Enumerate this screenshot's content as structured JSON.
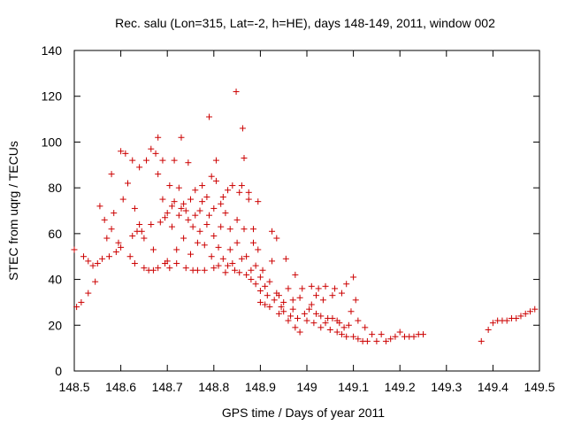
{
  "chart_data": {
    "type": "scatter",
    "title": "Rec. salu (Lon=315, Lat=-2, h=HE), days 148-149, 2011, window 002",
    "xlabel": "GPS time / Days of year 2011",
    "ylabel": "STEC from uqrg / TECUs",
    "xlim": [
      148.5,
      149.5
    ],
    "ylim": [
      0,
      140
    ],
    "xticks": [
      "148.5",
      "148.6",
      "148.7",
      "148.8",
      "148.9",
      "149",
      "149.1",
      "149.2",
      "149.3",
      "149.4",
      "149.5"
    ],
    "yticks": [
      "0",
      "20",
      "40",
      "60",
      "80",
      "100",
      "120",
      "140"
    ],
    "grid": false,
    "marker": "plus",
    "color": "#cc0000",
    "points": [
      [
        148.5,
        53
      ],
      [
        148.505,
        28
      ],
      [
        148.515,
        30
      ],
      [
        148.52,
        50
      ],
      [
        148.53,
        48
      ],
      [
        148.53,
        34
      ],
      [
        148.54,
        46
      ],
      [
        148.545,
        39
      ],
      [
        148.55,
        47
      ],
      [
        148.555,
        72
      ],
      [
        148.56,
        49
      ],
      [
        148.565,
        66
      ],
      [
        148.57,
        58
      ],
      [
        148.575,
        50
      ],
      [
        148.58,
        62
      ],
      [
        148.58,
        86
      ],
      [
        148.585,
        69
      ],
      [
        148.59,
        52
      ],
      [
        148.595,
        56
      ],
      [
        148.6,
        54
      ],
      [
        148.6,
        96
      ],
      [
        148.605,
        75
      ],
      [
        148.61,
        95
      ],
      [
        148.615,
        82
      ],
      [
        148.62,
        50
      ],
      [
        148.625,
        59
      ],
      [
        148.625,
        92
      ],
      [
        148.63,
        47
      ],
      [
        148.63,
        71
      ],
      [
        148.635,
        61
      ],
      [
        148.64,
        89
      ],
      [
        148.64,
        64
      ],
      [
        148.645,
        61
      ],
      [
        148.65,
        45
      ],
      [
        148.65,
        58
      ],
      [
        148.655,
        92
      ],
      [
        148.66,
        44
      ],
      [
        148.665,
        64
      ],
      [
        148.665,
        97
      ],
      [
        148.67,
        53
      ],
      [
        148.67,
        44
      ],
      [
        148.675,
        95
      ],
      [
        148.68,
        45
      ],
      [
        148.68,
        102
      ],
      [
        148.68,
        86
      ],
      [
        148.685,
        65
      ],
      [
        148.69,
        92
      ],
      [
        148.69,
        75
      ],
      [
        148.695,
        47
      ],
      [
        148.695,
        67
      ],
      [
        148.7,
        48
      ],
      [
        148.7,
        69
      ],
      [
        148.705,
        81
      ],
      [
        148.705,
        45
      ],
      [
        148.71,
        63
      ],
      [
        148.71,
        72
      ],
      [
        148.715,
        92
      ],
      [
        148.715,
        74
      ],
      [
        148.72,
        47
      ],
      [
        148.72,
        53
      ],
      [
        148.725,
        68
      ],
      [
        148.725,
        80
      ],
      [
        148.73,
        71
      ],
      [
        148.73,
        102
      ],
      [
        148.735,
        58
      ],
      [
        148.735,
        73
      ],
      [
        148.74,
        70
      ],
      [
        148.74,
        45
      ],
      [
        148.745,
        66
      ],
      [
        148.745,
        91
      ],
      [
        148.75,
        51
      ],
      [
        148.75,
        75
      ],
      [
        148.755,
        44
      ],
      [
        148.755,
        63
      ],
      [
        148.76,
        68
      ],
      [
        148.76,
        79
      ],
      [
        148.765,
        44
      ],
      [
        148.765,
        56
      ],
      [
        148.77,
        61
      ],
      [
        148.77,
        70
      ],
      [
        148.775,
        81
      ],
      [
        148.775,
        74
      ],
      [
        148.78,
        44
      ],
      [
        148.78,
        55
      ],
      [
        148.785,
        64
      ],
      [
        148.785,
        76
      ],
      [
        148.79,
        111
      ],
      [
        148.79,
        68
      ],
      [
        148.795,
        85
      ],
      [
        148.795,
        50
      ],
      [
        148.8,
        45
      ],
      [
        148.8,
        59
      ],
      [
        148.8,
        71
      ],
      [
        148.805,
        83
      ],
      [
        148.805,
        92
      ],
      [
        148.81,
        46
      ],
      [
        148.81,
        54
      ],
      [
        148.815,
        73
      ],
      [
        148.815,
        63
      ],
      [
        148.82,
        49
      ],
      [
        148.82,
        76
      ],
      [
        148.825,
        43
      ],
      [
        148.825,
        69
      ],
      [
        148.83,
        79
      ],
      [
        148.83,
        46
      ],
      [
        148.835,
        53
      ],
      [
        148.835,
        62
      ],
      [
        148.84,
        47
      ],
      [
        148.84,
        81
      ],
      [
        148.845,
        44
      ],
      [
        148.848,
        122
      ],
      [
        148.85,
        56
      ],
      [
        148.85,
        66
      ],
      [
        148.855,
        78
      ],
      [
        148.855,
        43
      ],
      [
        148.86,
        49
      ],
      [
        148.86,
        81
      ],
      [
        148.862,
        106
      ],
      [
        148.865,
        93
      ],
      [
        148.865,
        62
      ],
      [
        148.87,
        42
      ],
      [
        148.87,
        50
      ],
      [
        148.875,
        78
      ],
      [
        148.875,
        75
      ],
      [
        148.88,
        40
      ],
      [
        148.88,
        44
      ],
      [
        148.885,
        56
      ],
      [
        148.885,
        62
      ],
      [
        148.89,
        38
      ],
      [
        148.89,
        46
      ],
      [
        148.895,
        53
      ],
      [
        148.895,
        74
      ],
      [
        148.9,
        30
      ],
      [
        148.9,
        35
      ],
      [
        148.9,
        41
      ],
      [
        148.905,
        44
      ],
      [
        148.91,
        29
      ],
      [
        148.91,
        37
      ],
      [
        148.915,
        33
      ],
      [
        148.92,
        28
      ],
      [
        148.92,
        39
      ],
      [
        148.925,
        48
      ],
      [
        148.925,
        61
      ],
      [
        148.93,
        31
      ],
      [
        148.935,
        34
      ],
      [
        148.935,
        58
      ],
      [
        148.94,
        25
      ],
      [
        148.94,
        33
      ],
      [
        148.945,
        28
      ],
      [
        148.95,
        30
      ],
      [
        148.95,
        26
      ],
      [
        148.955,
        49
      ],
      [
        148.96,
        22
      ],
      [
        148.96,
        36
      ],
      [
        148.965,
        24
      ],
      [
        148.97,
        31
      ],
      [
        148.97,
        27
      ],
      [
        148.975,
        19
      ],
      [
        148.975,
        42
      ],
      [
        148.98,
        23
      ],
      [
        148.985,
        17
      ],
      [
        148.985,
        32
      ],
      [
        148.99,
        36
      ],
      [
        148.995,
        25
      ],
      [
        149.0,
        22
      ],
      [
        149.005,
        27
      ],
      [
        149.01,
        37
      ],
      [
        149.01,
        29
      ],
      [
        149.015,
        21
      ],
      [
        149.02,
        33
      ],
      [
        149.02,
        25
      ],
      [
        149.025,
        36
      ],
      [
        149.03,
        19
      ],
      [
        149.03,
        24
      ],
      [
        149.035,
        31
      ],
      [
        149.04,
        37
      ],
      [
        149.04,
        21
      ],
      [
        149.045,
        23
      ],
      [
        149.05,
        18
      ],
      [
        149.055,
        33
      ],
      [
        149.055,
        23
      ],
      [
        149.06,
        36
      ],
      [
        149.065,
        17
      ],
      [
        149.065,
        22
      ],
      [
        149.07,
        21
      ],
      [
        149.075,
        16
      ],
      [
        149.075,
        34
      ],
      [
        149.08,
        19
      ],
      [
        149.085,
        38
      ],
      [
        149.085,
        15
      ],
      [
        149.09,
        20
      ],
      [
        149.095,
        26
      ],
      [
        149.1,
        15
      ],
      [
        149.1,
        41
      ],
      [
        149.105,
        31
      ],
      [
        149.11,
        14
      ],
      [
        149.11,
        22
      ],
      [
        149.12,
        13
      ],
      [
        149.125,
        19
      ],
      [
        149.13,
        13
      ],
      [
        149.14,
        16
      ],
      [
        149.15,
        13
      ],
      [
        149.16,
        16
      ],
      [
        149.17,
        13
      ],
      [
        149.18,
        14
      ],
      [
        149.19,
        15
      ],
      [
        149.2,
        17
      ],
      [
        149.21,
        15
      ],
      [
        149.22,
        15
      ],
      [
        149.23,
        15
      ],
      [
        149.24,
        16
      ],
      [
        149.25,
        16
      ],
      [
        149.375,
        13
      ],
      [
        149.39,
        18
      ],
      [
        149.4,
        21
      ],
      [
        149.41,
        22
      ],
      [
        149.42,
        22
      ],
      [
        149.43,
        22
      ],
      [
        149.44,
        23
      ],
      [
        149.45,
        23
      ],
      [
        149.46,
        24
      ],
      [
        149.47,
        25
      ],
      [
        149.48,
        26
      ],
      [
        149.49,
        27
      ]
    ]
  }
}
